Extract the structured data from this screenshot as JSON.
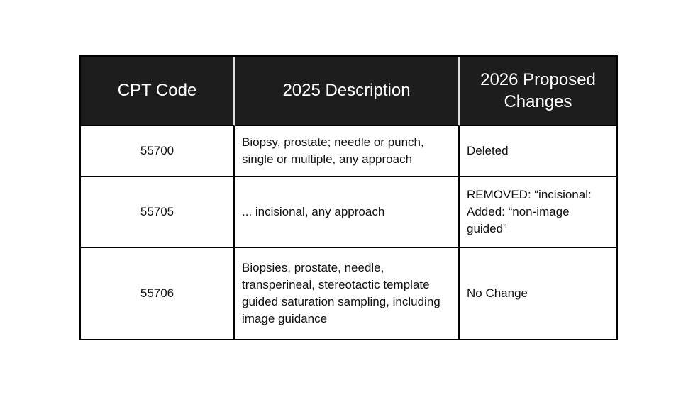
{
  "colors": {
    "page_background": "#ffffff",
    "header_background": "#1d1d1d",
    "header_text": "#ffffff",
    "body_text": "#111111",
    "table_border": "#000000"
  },
  "table": {
    "headers": [
      "CPT Code",
      "2025 Description",
      "2026 Proposed Changes"
    ],
    "rows": [
      {
        "code": "55700",
        "description": "Biopsy, prostate; needle or punch, single or multiple, any approach",
        "change": "Deleted"
      },
      {
        "code": "55705",
        "description": "... incisional, any approach",
        "change": "REMOVED: “incisional: Added: “non-image guided”"
      },
      {
        "code": "55706",
        "description": "Biopsies, prostate, needle, transperineal, stereotactic template guided saturation sampling, including image guidance",
        "change": "No Change"
      }
    ]
  }
}
